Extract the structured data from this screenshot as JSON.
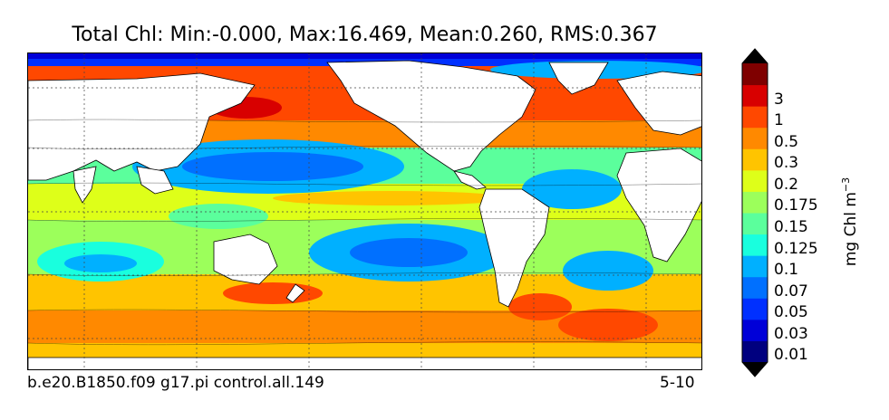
{
  "title": "Total Chl: Min:-0.000, Max:16.469, Mean:0.260, RMS:0.367",
  "footer": {
    "left": "b.e20.B1850.f09 g17.pi control.all.149",
    "right": "5-10"
  },
  "colorbar": {
    "units_prefix": "mg Chl m",
    "units_exponent": "−3",
    "levels": [
      "0.01",
      "0.03",
      "0.05",
      "0.07",
      "0.1",
      "0.125",
      "0.15",
      "0.175",
      "0.2",
      "0.3",
      "0.5",
      "1",
      "3"
    ],
    "colors": [
      "#00007f",
      "#0000d8",
      "#0030ff",
      "#0070ff",
      "#00b0ff",
      "#19ffde",
      "#5bff9c",
      "#9cff5b",
      "#deff19",
      "#ffc400",
      "#ff8900",
      "#ff4800",
      "#d80000",
      "#7f0000"
    ]
  },
  "map_regions_legend": {
    "land": "#ffffff",
    "contour_line": "#000000"
  }
}
